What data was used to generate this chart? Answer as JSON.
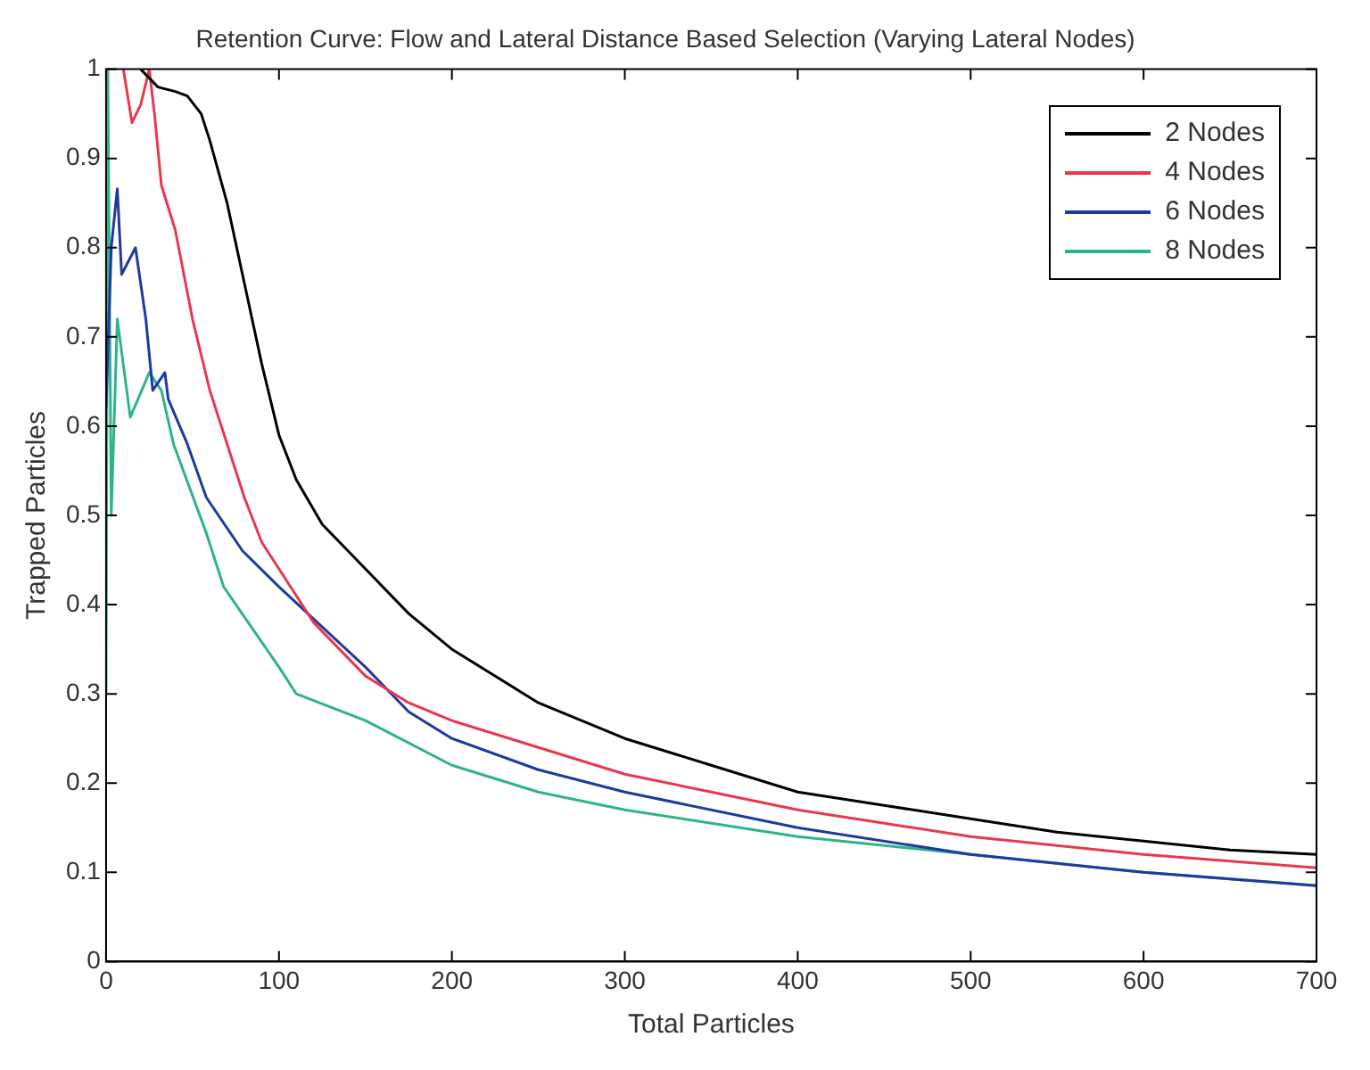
{
  "chart_data": {
    "type": "line",
    "title": "Retention Curve: Flow and Lateral Distance Based Selection (Varying Lateral Nodes)",
    "xlabel": "Total Particles",
    "ylabel": "Trapped Particles",
    "xlim": [
      0,
      700
    ],
    "xticks": [
      0,
      100,
      200,
      300,
      400,
      500,
      600,
      700
    ],
    "ylim": [
      0,
      1
    ],
    "yticks": [
      0,
      0.1,
      0.2,
      0.3,
      0.4,
      0.5,
      0.6,
      0.7,
      0.8,
      0.9,
      1
    ],
    "grid": false,
    "legend": "top right",
    "marker": "none",
    "line_style": "solid",
    "series": [
      {
        "name": "2 Nodes",
        "color": "#000000",
        "x": [
          20,
          30,
          40,
          47,
          55,
          60,
          70,
          80,
          90,
          100,
          110,
          125,
          150,
          175,
          200,
          250,
          300,
          350,
          400,
          450,
          500,
          550,
          600,
          650,
          700
        ],
        "values": [
          1.0,
          0.98,
          0.975,
          0.97,
          0.95,
          0.92,
          0.85,
          0.76,
          0.67,
          0.59,
          0.54,
          0.49,
          0.44,
          0.39,
          0.35,
          0.29,
          0.25,
          0.22,
          0.19,
          0.175,
          0.16,
          0.145,
          0.135,
          0.125,
          0.12
        ]
      },
      {
        "name": "4 Nodes",
        "color": "#e8384f",
        "x": [
          10,
          15,
          20,
          25,
          28,
          32,
          40,
          50,
          60,
          70,
          80,
          90,
          100,
          120,
          150,
          175,
          200,
          250,
          300,
          350,
          400,
          450,
          500,
          600,
          700
        ],
        "values": [
          1.0,
          0.94,
          0.96,
          1.0,
          0.95,
          0.87,
          0.82,
          0.72,
          0.64,
          0.58,
          0.52,
          0.47,
          0.44,
          0.38,
          0.32,
          0.29,
          0.27,
          0.24,
          0.21,
          0.19,
          0.17,
          0.155,
          0.14,
          0.12,
          0.105
        ]
      },
      {
        "name": "6 Nodes",
        "color": "#1f3a9e",
        "x": [
          0,
          3,
          6.5,
          9,
          17,
          23,
          27,
          34,
          36,
          47,
          58,
          79,
          100,
          150,
          175,
          200,
          250,
          300,
          400,
          500,
          600,
          700
        ],
        "values": [
          0.62,
          0.8,
          0.866,
          0.77,
          0.8,
          0.72,
          0.64,
          0.66,
          0.63,
          0.58,
          0.52,
          0.46,
          0.42,
          0.33,
          0.28,
          0.25,
          0.215,
          0.19,
          0.15,
          0.12,
          0.1,
          0.085
        ]
      },
      {
        "name": "8 Nodes",
        "color": "#2fb38a",
        "x": [
          0,
          1,
          3,
          6.5,
          14,
          25,
          32,
          39,
          58,
          68,
          100,
          110,
          150,
          200,
          250,
          300,
          400,
          500,
          600,
          700
        ],
        "values": [
          0.3,
          1.0,
          0.5,
          0.72,
          0.61,
          0.66,
          0.64,
          0.58,
          0.48,
          0.42,
          0.33,
          0.3,
          0.27,
          0.22,
          0.19,
          0.17,
          0.14,
          0.12,
          0.1,
          0.085
        ]
      }
    ]
  }
}
